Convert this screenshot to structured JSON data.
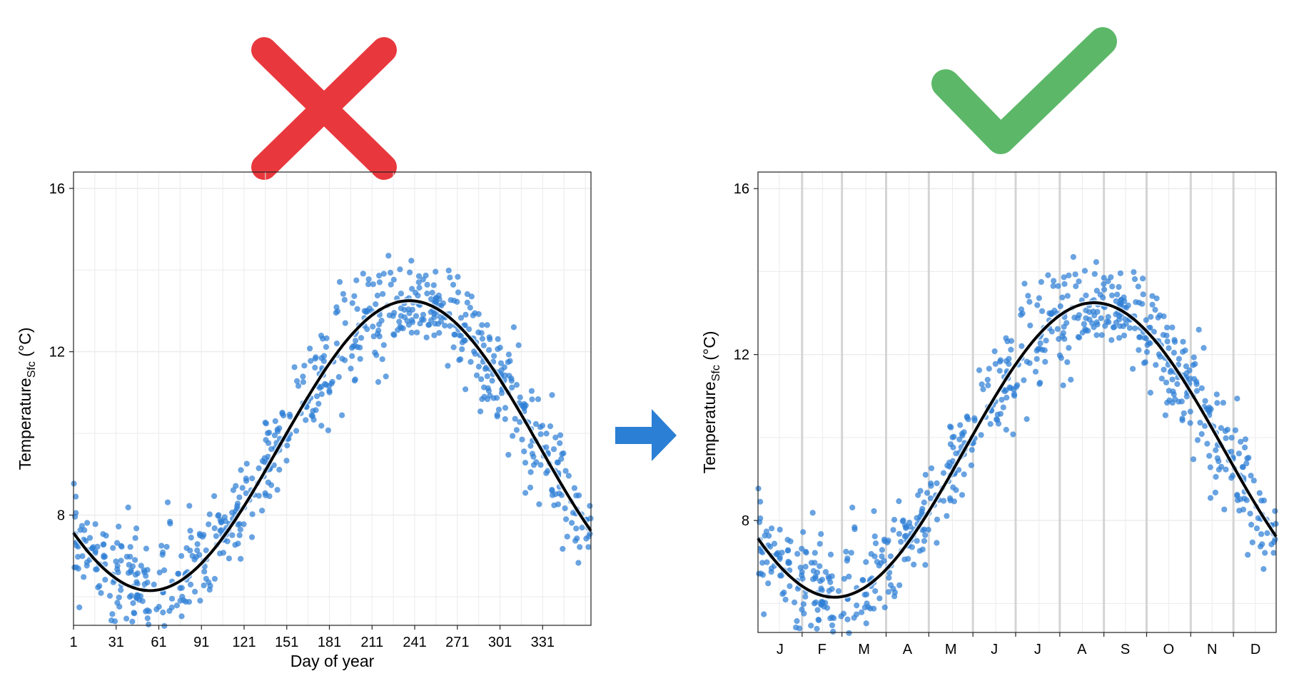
{
  "markers": {
    "wrong": {
      "icon": "cross-icon",
      "color": "#e8383d"
    },
    "right": {
      "icon": "check-icon",
      "color": "#5cb868"
    },
    "transition": {
      "icon": "arrow-right-icon",
      "color": "#2b7fd4"
    }
  },
  "colors": {
    "points": "#2f7fd6",
    "fit": "#000000",
    "grid_minor": "#ebebeb",
    "month_lines": "#d4d4d4"
  },
  "chart_data": [
    {
      "type": "scatter",
      "ylabel_main": "Temperature",
      "ylabel_sub": "Sfc",
      "ylabel_unit": " (°C)",
      "xlabel": "Day of year",
      "xlim": [
        1,
        365
      ],
      "ylim": [
        5.3,
        16.4
      ],
      "x_ticks": [
        1,
        31,
        61,
        91,
        121,
        151,
        181,
        211,
        241,
        271,
        301,
        331
      ],
      "x_tick_labels": [
        "1",
        "31",
        "61",
        "91",
        "121",
        "151",
        "181",
        "211",
        "241",
        "271",
        "301",
        "331"
      ],
      "y_ticks": [
        8,
        12,
        16
      ],
      "y_tick_labels": [
        "8",
        "12",
        "16"
      ],
      "grid": true,
      "series": [
        {
          "kind": "points",
          "mean_curve": {
            "mean": 9.7,
            "amplitude": 3.55,
            "phase_day": 146,
            "period": 365
          },
          "spread": 0.55,
          "count": 720
        },
        {
          "kind": "smooth_line"
        }
      ]
    },
    {
      "type": "scatter",
      "ylabel_main": "Temperature",
      "ylabel_sub": "Sfc",
      "ylabel_unit": " (°C)",
      "xlabel": "",
      "xlim": [
        1,
        365
      ],
      "ylim": [
        5.3,
        16.4
      ],
      "month_boundaries": [
        32,
        60,
        91,
        121,
        152,
        182,
        213,
        244,
        274,
        305,
        335
      ],
      "x_tick_labels": [
        "J",
        "F",
        "M",
        "A",
        "M",
        "J",
        "J",
        "A",
        "S",
        "O",
        "N",
        "D"
      ],
      "y_ticks": [
        8,
        12,
        16
      ],
      "y_tick_labels": [
        "8",
        "12",
        "16"
      ],
      "grid": true,
      "series": [
        {
          "kind": "points",
          "mean_curve": {
            "mean": 9.7,
            "amplitude": 3.55,
            "phase_day": 146,
            "period": 365
          },
          "spread": 0.55,
          "count": 720
        },
        {
          "kind": "smooth_line"
        }
      ]
    }
  ]
}
